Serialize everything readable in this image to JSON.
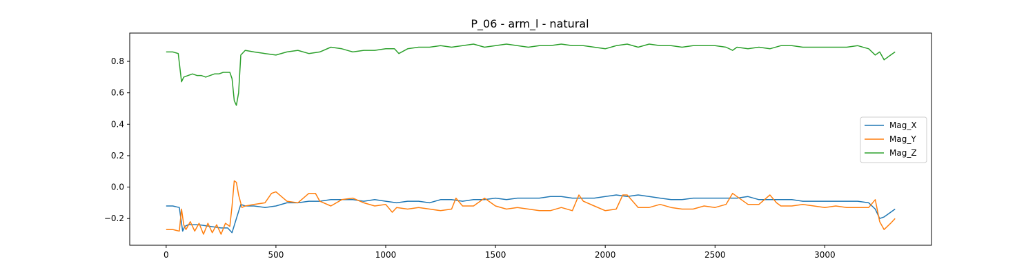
{
  "chart_data": {
    "type": "line",
    "title": "P_06 - arm_l - natural",
    "xlabel": "",
    "ylabel": "",
    "xlim": [
      -166,
      3486
    ],
    "ylim": [
      -0.37,
      0.98
    ],
    "xticks": [
      0,
      500,
      1000,
      1500,
      2000,
      2500,
      3000
    ],
    "xtick_labels": [
      "0",
      "500",
      "1000",
      "1500",
      "2000",
      "2500",
      "3000"
    ],
    "yticks": [
      -0.2,
      0.0,
      0.2,
      0.4,
      0.6,
      0.8
    ],
    "ytick_labels": [
      "−0.2",
      "0.0",
      "0.2",
      "0.4",
      "0.6",
      "0.8"
    ],
    "grid": false,
    "legend_position": "center-right",
    "series": [
      {
        "name": "Mag_X",
        "color": "#1f77b4",
        "x": [
          0,
          30,
          60,
          75,
          85,
          100,
          150,
          200,
          250,
          280,
          300,
          320,
          340,
          360,
          400,
          450,
          500,
          550,
          600,
          650,
          700,
          750,
          800,
          850,
          900,
          950,
          1000,
          1050,
          1100,
          1150,
          1200,
          1250,
          1300,
          1350,
          1400,
          1450,
          1500,
          1550,
          1600,
          1650,
          1700,
          1750,
          1800,
          1850,
          1900,
          1950,
          2000,
          2050,
          2100,
          2150,
          2200,
          2250,
          2300,
          2350,
          2400,
          2450,
          2500,
          2550,
          2600,
          2650,
          2700,
          2750,
          2800,
          2850,
          2900,
          2950,
          3000,
          3050,
          3100,
          3150,
          3200,
          3230,
          3250,
          3270,
          3300,
          3320
        ],
        "y": [
          -0.12,
          -0.12,
          -0.13,
          -0.28,
          -0.25,
          -0.24,
          -0.24,
          -0.25,
          -0.26,
          -0.26,
          -0.29,
          -0.2,
          -0.11,
          -0.12,
          -0.12,
          -0.13,
          -0.12,
          -0.1,
          -0.1,
          -0.09,
          -0.09,
          -0.08,
          -0.08,
          -0.08,
          -0.09,
          -0.08,
          -0.09,
          -0.1,
          -0.09,
          -0.09,
          -0.1,
          -0.08,
          -0.08,
          -0.09,
          -0.08,
          -0.08,
          -0.07,
          -0.08,
          -0.07,
          -0.07,
          -0.07,
          -0.06,
          -0.06,
          -0.07,
          -0.07,
          -0.07,
          -0.06,
          -0.05,
          -0.06,
          -0.05,
          -0.06,
          -0.07,
          -0.08,
          -0.08,
          -0.07,
          -0.07,
          -0.07,
          -0.07,
          -0.07,
          -0.06,
          -0.08,
          -0.08,
          -0.08,
          -0.08,
          -0.09,
          -0.09,
          -0.09,
          -0.09,
          -0.09,
          -0.09,
          -0.1,
          -0.14,
          -0.2,
          -0.19,
          -0.16,
          -0.14
        ]
      },
      {
        "name": "Mag_Y",
        "color": "#ff7f0e",
        "x": [
          0,
          30,
          60,
          70,
          80,
          90,
          110,
          130,
          150,
          170,
          190,
          210,
          230,
          250,
          270,
          290,
          300,
          310,
          320,
          330,
          345,
          360,
          400,
          450,
          480,
          500,
          550,
          600,
          650,
          680,
          700,
          750,
          800,
          850,
          900,
          950,
          1000,
          1030,
          1050,
          1100,
          1150,
          1200,
          1250,
          1300,
          1320,
          1350,
          1400,
          1450,
          1500,
          1550,
          1600,
          1650,
          1700,
          1750,
          1800,
          1850,
          1880,
          1900,
          1950,
          2000,
          2050,
          2080,
          2100,
          2150,
          2200,
          2250,
          2300,
          2350,
          2400,
          2450,
          2500,
          2550,
          2580,
          2600,
          2650,
          2700,
          2750,
          2780,
          2800,
          2850,
          2900,
          2950,
          3000,
          3050,
          3100,
          3150,
          3200,
          3230,
          3250,
          3270,
          3300,
          3320
        ],
        "y": [
          -0.27,
          -0.27,
          -0.28,
          -0.14,
          -0.24,
          -0.27,
          -0.22,
          -0.28,
          -0.23,
          -0.3,
          -0.23,
          -0.29,
          -0.24,
          -0.3,
          -0.23,
          -0.25,
          -0.12,
          0.04,
          0.03,
          -0.05,
          -0.13,
          -0.12,
          -0.11,
          -0.1,
          -0.04,
          -0.03,
          -0.09,
          -0.1,
          -0.04,
          -0.04,
          -0.09,
          -0.12,
          -0.08,
          -0.07,
          -0.1,
          -0.12,
          -0.11,
          -0.16,
          -0.13,
          -0.14,
          -0.13,
          -0.14,
          -0.15,
          -0.14,
          -0.07,
          -0.12,
          -0.12,
          -0.07,
          -0.12,
          -0.14,
          -0.13,
          -0.14,
          -0.15,
          -0.15,
          -0.13,
          -0.15,
          -0.05,
          -0.09,
          -0.12,
          -0.15,
          -0.14,
          -0.05,
          -0.05,
          -0.13,
          -0.13,
          -0.11,
          -0.13,
          -0.14,
          -0.14,
          -0.12,
          -0.13,
          -0.11,
          -0.04,
          -0.06,
          -0.11,
          -0.11,
          -0.05,
          -0.1,
          -0.12,
          -0.12,
          -0.11,
          -0.12,
          -0.13,
          -0.12,
          -0.13,
          -0.13,
          -0.13,
          -0.08,
          -0.22,
          -0.27,
          -0.23,
          -0.2
        ]
      },
      {
        "name": "Mag_Z",
        "color": "#2ca02c",
        "x": [
          0,
          30,
          55,
          65,
          70,
          80,
          100,
          120,
          140,
          160,
          180,
          200,
          220,
          240,
          260,
          280,
          290,
          300,
          310,
          320,
          330,
          340,
          360,
          400,
          450,
          500,
          550,
          600,
          650,
          700,
          750,
          800,
          850,
          900,
          950,
          1000,
          1040,
          1060,
          1100,
          1150,
          1200,
          1250,
          1300,
          1350,
          1400,
          1450,
          1500,
          1550,
          1600,
          1650,
          1700,
          1750,
          1800,
          1850,
          1900,
          1950,
          2000,
          2050,
          2100,
          2150,
          2200,
          2250,
          2300,
          2350,
          2400,
          2450,
          2500,
          2550,
          2580,
          2600,
          2650,
          2700,
          2750,
          2800,
          2850,
          2900,
          2950,
          3000,
          3050,
          3100,
          3150,
          3200,
          3230,
          3250,
          3270,
          3300,
          3320
        ],
        "y": [
          0.86,
          0.86,
          0.85,
          0.73,
          0.67,
          0.7,
          0.71,
          0.72,
          0.71,
          0.71,
          0.7,
          0.71,
          0.72,
          0.72,
          0.73,
          0.73,
          0.73,
          0.69,
          0.55,
          0.52,
          0.6,
          0.84,
          0.87,
          0.86,
          0.85,
          0.84,
          0.86,
          0.87,
          0.85,
          0.86,
          0.89,
          0.88,
          0.86,
          0.87,
          0.87,
          0.88,
          0.88,
          0.85,
          0.88,
          0.89,
          0.89,
          0.9,
          0.89,
          0.9,
          0.91,
          0.89,
          0.9,
          0.91,
          0.9,
          0.89,
          0.9,
          0.9,
          0.91,
          0.9,
          0.9,
          0.89,
          0.88,
          0.9,
          0.91,
          0.89,
          0.91,
          0.9,
          0.9,
          0.89,
          0.9,
          0.9,
          0.9,
          0.89,
          0.87,
          0.89,
          0.88,
          0.89,
          0.88,
          0.9,
          0.9,
          0.89,
          0.89,
          0.89,
          0.89,
          0.89,
          0.9,
          0.88,
          0.84,
          0.86,
          0.81,
          0.84,
          0.86
        ]
      }
    ]
  }
}
